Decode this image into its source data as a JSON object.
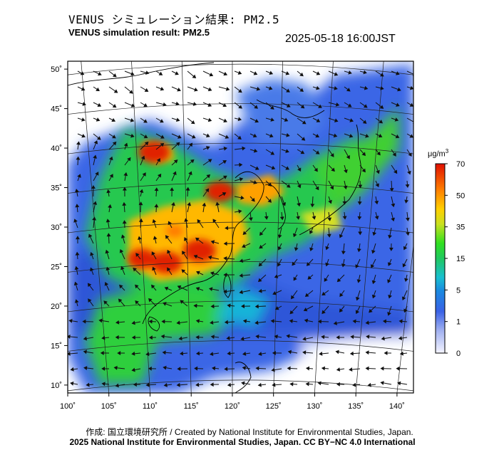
{
  "header": {
    "title_jp": "VENUS シミュレーション結果: PM2.5",
    "title_en": "VENUS simulation result: PM2.5",
    "timestamp": "2025-05-18 16:00JST"
  },
  "map": {
    "lon_ticks": [
      "100˚",
      "105˚",
      "110˚",
      "115˚",
      "120˚",
      "125˚",
      "130˚",
      "135˚",
      "140˚"
    ],
    "lat_ticks": [
      "50˚",
      "45˚",
      "40˚",
      "35˚",
      "30˚",
      "25˚",
      "20˚",
      "15˚",
      "10˚"
    ],
    "lon_range": [
      100,
      142
    ],
    "lat_range": [
      9,
      51
    ],
    "hotspots": [
      {
        "lon": 110.5,
        "lat": 39.5,
        "level": 65
      },
      {
        "lon": 118.5,
        "lat": 34.5,
        "level": 62
      },
      {
        "lon": 116,
        "lat": 27,
        "level": 66
      },
      {
        "lon": 112,
        "lat": 25.5,
        "level": 64
      },
      {
        "lon": 109,
        "lat": 26,
        "level": 60
      },
      {
        "lon": 113,
        "lat": 29.5,
        "level": 45
      }
    ]
  },
  "colorbar": {
    "unit_label": "μg/m",
    "unit_sup": "3",
    "tick_labels": [
      "70",
      "50",
      "35",
      "15",
      "5",
      "1",
      "0"
    ],
    "colors": [
      "#f0f0ff",
      "#3a62e6",
      "#19b4d8",
      "#20e020",
      "#e8e020",
      "#ff9000",
      "#e02000"
    ]
  },
  "footer": {
    "credit_line1": "作成: 国立環境研究所 / Created by National Institute for Environmental Studies, Japan.",
    "credit_line2": "2025 National Institute for Environmental Studies, Japan. CC BY−NC 4.0 International"
  }
}
